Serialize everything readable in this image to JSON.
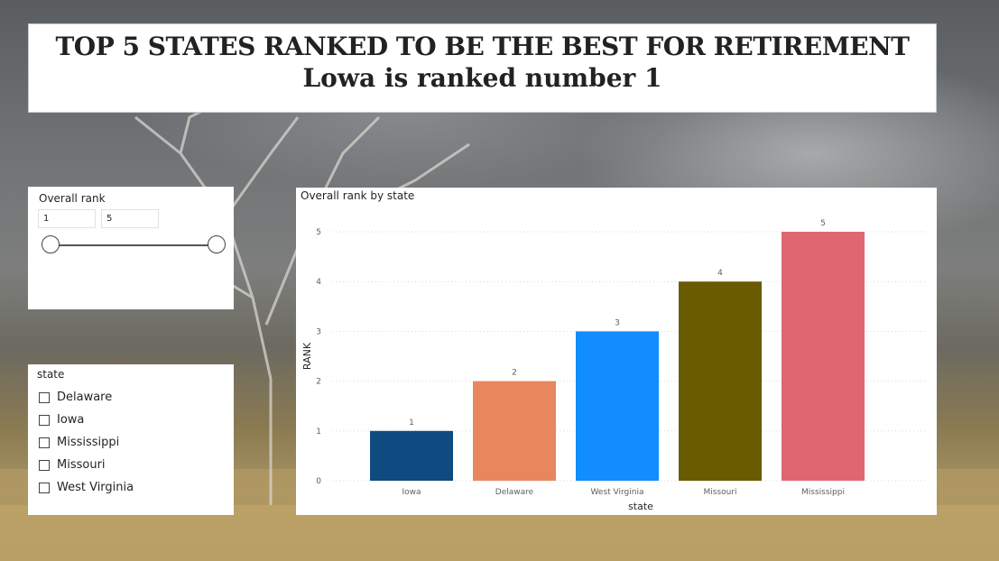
{
  "header": {
    "title_line1": "TOP 5 STATES RANKED TO BE THE BEST FOR RETIREMENT",
    "title_line2": "Lowa is ranked number 1"
  },
  "rank_slicer": {
    "title": "Overall rank",
    "min_value": "1",
    "max_value": "5"
  },
  "state_slicer": {
    "title": "state",
    "items": [
      {
        "label": "Delaware"
      },
      {
        "label": "Iowa"
      },
      {
        "label": "Mississippi"
      },
      {
        "label": "Missouri"
      },
      {
        "label": "West Virginia"
      }
    ]
  },
  "chart_data": {
    "type": "bar",
    "title": "Overall rank by state",
    "xlabel": "state",
    "ylabel": "RANK",
    "categories": [
      "Iowa",
      "Delaware",
      "West Virginia",
      "Missouri",
      "Mississippi"
    ],
    "values": [
      1,
      2,
      3,
      4,
      5
    ],
    "colors": [
      "#0f4a80",
      "#e8875e",
      "#118dff",
      "#6b5b00",
      "#e06672"
    ],
    "ylim": [
      0,
      5
    ],
    "yticks": [
      0,
      1,
      2,
      3,
      4,
      5
    ],
    "grid": true,
    "data_labels": true
  }
}
